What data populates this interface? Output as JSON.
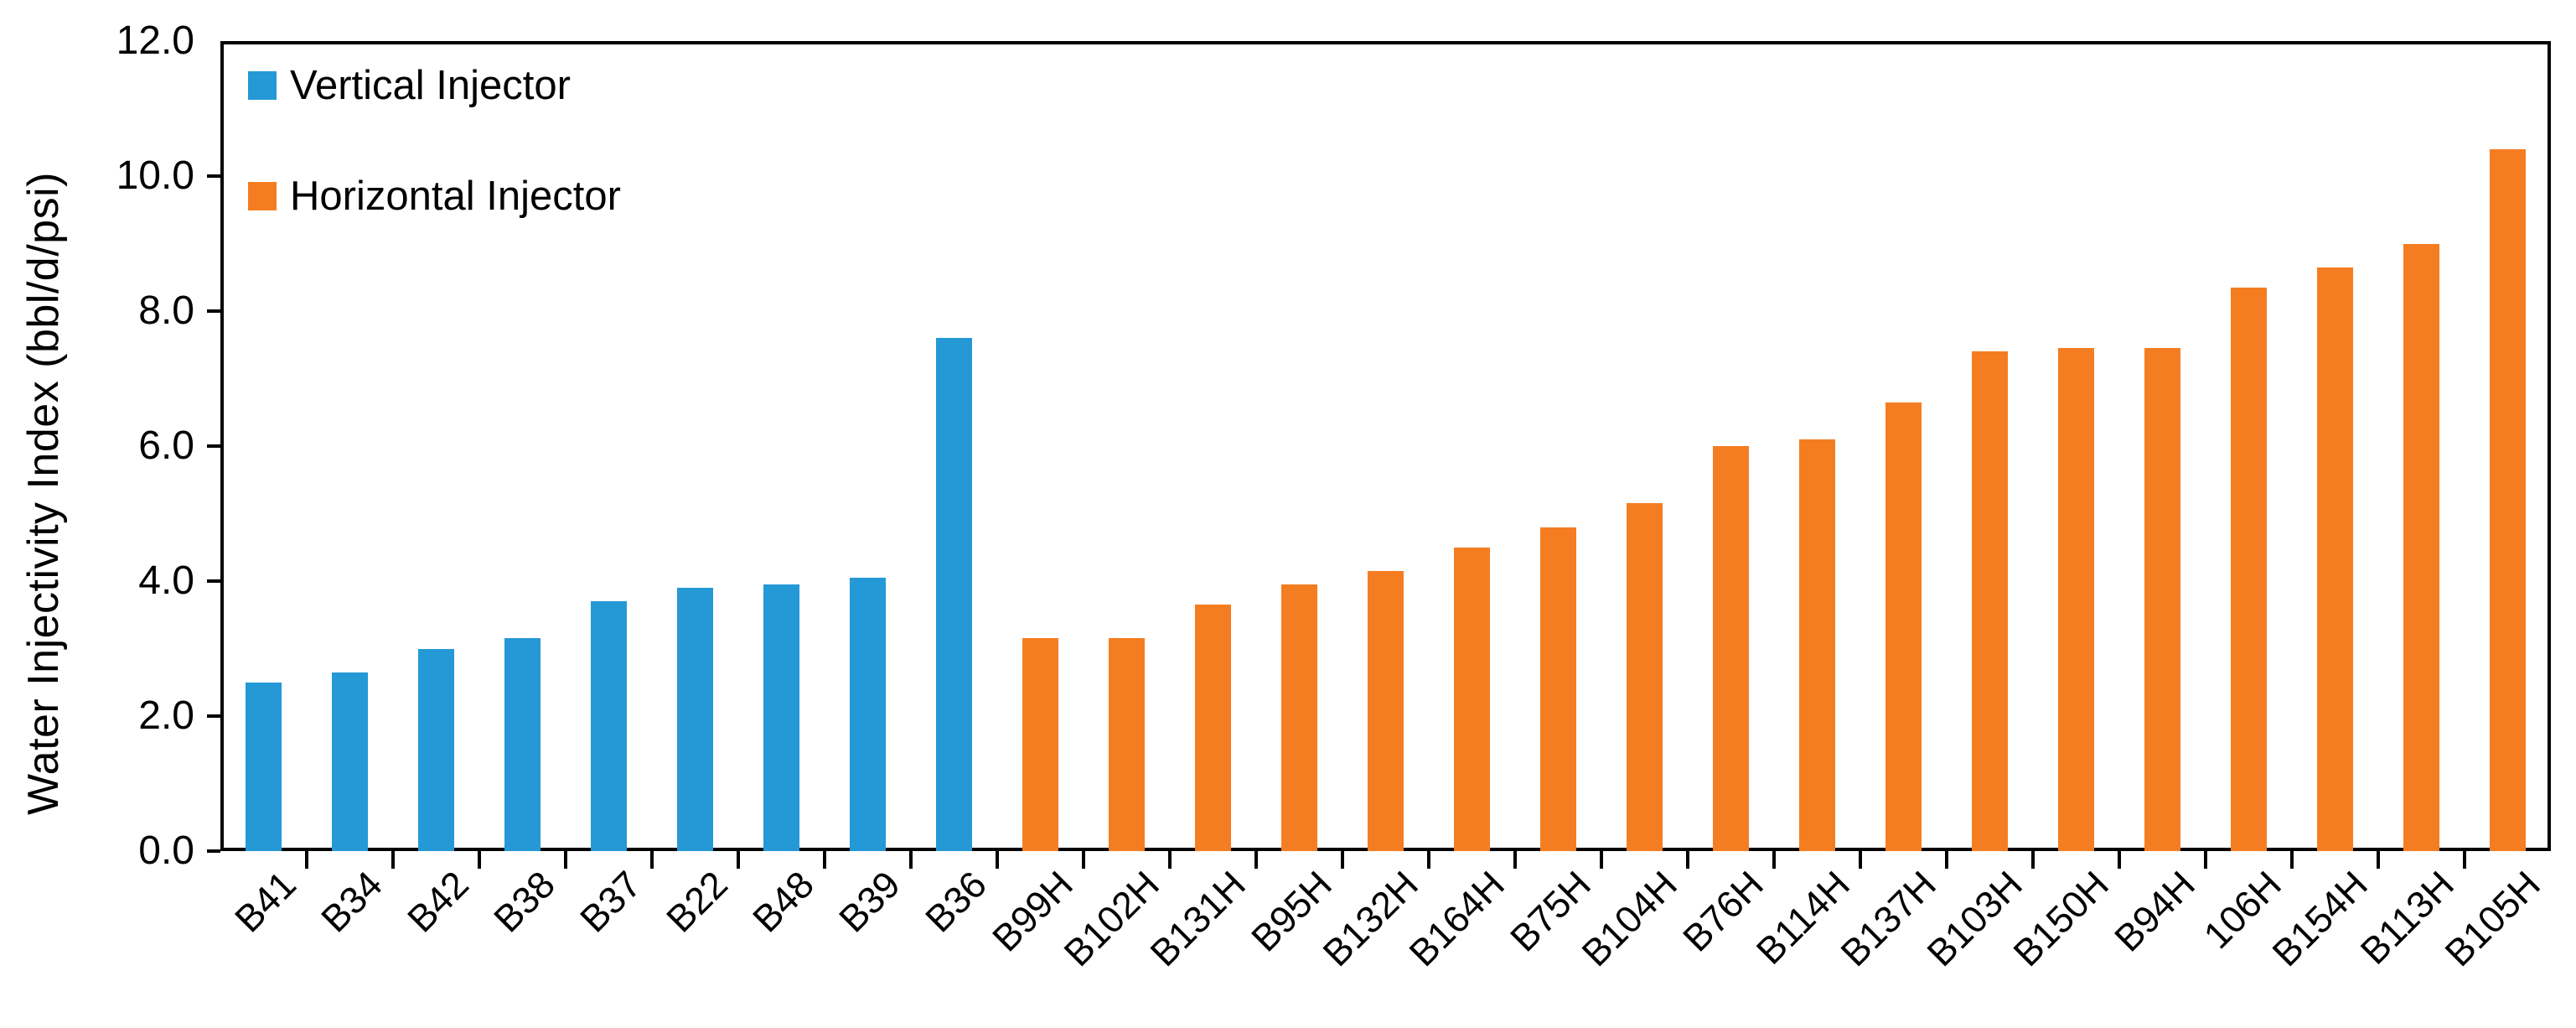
{
  "chart_data": {
    "type": "bar",
    "title": "",
    "xlabel": "",
    "ylabel": "Water Injectivity Index (bbl/d/psi)",
    "ylim": [
      0,
      12
    ],
    "ytick_step": 2,
    "ytick_labels": [
      "0.0",
      "2.0",
      "4.0",
      "6.0",
      "8.0",
      "10.0",
      "12.0"
    ],
    "grid": false,
    "legend_position": "top-left-inside",
    "series": [
      {
        "name": "Vertical Injector",
        "color": "#2499d6"
      },
      {
        "name": "Horizontal Injector",
        "color": "#f57d21"
      }
    ],
    "categories": [
      "B41",
      "B34",
      "B42",
      "B38",
      "B37",
      "B22",
      "B48",
      "B39",
      "B36",
      "B99H",
      "B102H",
      "B131H",
      "B95H",
      "B132H",
      "B164H",
      "B75H",
      "B104H",
      "B76H",
      "B114H",
      "B137H",
      "B103H",
      "B150H",
      "B94H",
      "106H",
      "B154H",
      "B113H",
      "B105H"
    ],
    "bars": [
      {
        "label": "B41",
        "value": 2.5,
        "series": "Vertical Injector"
      },
      {
        "label": "B34",
        "value": 2.65,
        "series": "Vertical Injector"
      },
      {
        "label": "B42",
        "value": 3.0,
        "series": "Vertical Injector"
      },
      {
        "label": "B38",
        "value": 3.15,
        "series": "Vertical Injector"
      },
      {
        "label": "B37",
        "value": 3.7,
        "series": "Vertical Injector"
      },
      {
        "label": "B22",
        "value": 3.9,
        "series": "Vertical Injector"
      },
      {
        "label": "B48",
        "value": 3.95,
        "series": "Vertical Injector"
      },
      {
        "label": "B39",
        "value": 4.05,
        "series": "Vertical Injector"
      },
      {
        "label": "B36",
        "value": 7.6,
        "series": "Vertical Injector"
      },
      {
        "label": "B99H",
        "value": 3.15,
        "series": "Horizontal Injector"
      },
      {
        "label": "B102H",
        "value": 3.15,
        "series": "Horizontal Injector"
      },
      {
        "label": "B131H",
        "value": 3.65,
        "series": "Horizontal Injector"
      },
      {
        "label": "B95H",
        "value": 3.95,
        "series": "Horizontal Injector"
      },
      {
        "label": "B132H",
        "value": 4.15,
        "series": "Horizontal Injector"
      },
      {
        "label": "B164H",
        "value": 4.5,
        "series": "Horizontal Injector"
      },
      {
        "label": "B75H",
        "value": 4.8,
        "series": "Horizontal Injector"
      },
      {
        "label": "B104H",
        "value": 5.15,
        "series": "Horizontal Injector"
      },
      {
        "label": "B76H",
        "value": 6.0,
        "series": "Horizontal Injector"
      },
      {
        "label": "B114H",
        "value": 6.1,
        "series": "Horizontal Injector"
      },
      {
        "label": "B137H",
        "value": 6.65,
        "series": "Horizontal Injector"
      },
      {
        "label": "B103H",
        "value": 7.4,
        "series": "Horizontal Injector"
      },
      {
        "label": "B150H",
        "value": 7.45,
        "series": "Horizontal Injector"
      },
      {
        "label": "B94H",
        "value": 7.45,
        "series": "Horizontal Injector"
      },
      {
        "label": "106H",
        "value": 8.35,
        "series": "Horizontal Injector"
      },
      {
        "label": "B154H",
        "value": 8.65,
        "series": "Horizontal Injector"
      },
      {
        "label": "B113H",
        "value": 9.0,
        "series": "Horizontal Injector"
      }
    ],
    "last_bar": {
      "label": "B105H",
      "value": 10.4,
      "series": "Horizontal Injector"
    },
    "axis_color": "#000000",
    "background_color": "#ffffff"
  }
}
